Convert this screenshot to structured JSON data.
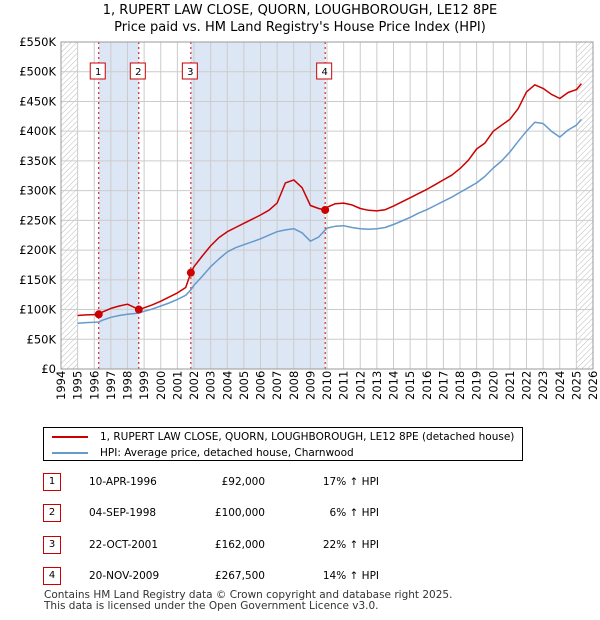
{
  "title": {
    "line1": "1, RUPERT LAW CLOSE, QUORN, LOUGHBOROUGH, LE12 8PE",
    "line2": "Price paid vs. HM Land Registry's House Price Index (HPI)"
  },
  "colors": {
    "price_line": "#cc0000",
    "hpi_line": "#6699cc",
    "shade": "#dde6f5",
    "grid": "#cccccc",
    "marker_border": "#cc0000"
  },
  "legend": {
    "items": [
      {
        "label": "1, RUPERT LAW CLOSE, QUORN, LOUGHBOROUGH, LE12 8PE (detached house)",
        "color": "#cc0000"
      },
      {
        "label": "HPI: Average price, detached house, Charnwood",
        "color": "#6699cc"
      }
    ]
  },
  "sales": [
    {
      "num": "1",
      "date": "10-APR-1996",
      "price": "£92,000",
      "hpi": "17% ↑ HPI"
    },
    {
      "num": "2",
      "date": "04-SEP-1998",
      "price": "£100,000",
      "hpi": "6% ↑ HPI"
    },
    {
      "num": "3",
      "date": "22-OCT-2001",
      "price": "£162,000",
      "hpi": "22% ↑ HPI"
    },
    {
      "num": "4",
      "date": "20-NOV-2009",
      "price": "£267,500",
      "hpi": "14% ↑ HPI"
    }
  ],
  "footer": {
    "line1": "Contains HM Land Registry data © Crown copyright and database right 2025.",
    "line2": "This data is licensed under the Open Government Licence v3.0."
  },
  "chart_data": {
    "type": "line",
    "title": "1, RUPERT LAW CLOSE, QUORN, LOUGHBOROUGH, LE12 8PE — Price paid vs. HM Land Registry's House Price Index (HPI)",
    "xlabel": "",
    "ylabel": "",
    "xlim": [
      1994,
      2026
    ],
    "ylim": [
      0,
      550000
    ],
    "xticks": [
      1994,
      1995,
      1996,
      1997,
      1998,
      1999,
      2000,
      2001,
      2002,
      2003,
      2004,
      2005,
      2006,
      2007,
      2008,
      2009,
      2010,
      2011,
      2012,
      2013,
      2014,
      2015,
      2016,
      2017,
      2018,
      2019,
      2020,
      2021,
      2022,
      2023,
      2024,
      2025,
      2026
    ],
    "yticks": [
      {
        "value": 0,
        "label": "£0"
      },
      {
        "value": 50000,
        "label": "£50K"
      },
      {
        "value": 100000,
        "label": "£100K"
      },
      {
        "value": 150000,
        "label": "£150K"
      },
      {
        "value": 200000,
        "label": "£200K"
      },
      {
        "value": 250000,
        "label": "£250K"
      },
      {
        "value": 300000,
        "label": "£300K"
      },
      {
        "value": 350000,
        "label": "£350K"
      },
      {
        "value": 400000,
        "label": "£400K"
      },
      {
        "value": 450000,
        "label": "£450K"
      },
      {
        "value": 500000,
        "label": "£500K"
      },
      {
        "value": 550000,
        "label": "£550K"
      }
    ],
    "data_start": 1995.0,
    "data_end": 2025.5,
    "shaded_ranges": [
      [
        1996.27,
        1998.68
      ],
      [
        2001.81,
        2009.89
      ]
    ],
    "hatched_ranges": [
      [
        1994.0,
        1995.0
      ],
      [
        2025.0,
        2026.0
      ]
    ],
    "markers": [
      {
        "label": "1",
        "x": 1996.27,
        "y": 92000
      },
      {
        "label": "2",
        "x": 1998.68,
        "y": 100000
      },
      {
        "label": "3",
        "x": 2001.81,
        "y": 162000
      },
      {
        "label": "4",
        "x": 2009.89,
        "y": 267500
      }
    ],
    "series": [
      {
        "name": "1, RUPERT LAW CLOSE, QUORN, LOUGHBOROUGH, LE12 8PE (detached house)",
        "color": "#cc0000",
        "x": [
          1995.0,
          1995.5,
          1996.0,
          1996.27,
          1996.5,
          1997.0,
          1997.5,
          1998.0,
          1998.68,
          1999.0,
          1999.5,
          2000.0,
          2000.5,
          2001.0,
          2001.5,
          2001.81,
          2002.0,
          2002.5,
          2003.0,
          2003.5,
          2004.0,
          2004.5,
          2005.0,
          2005.5,
          2006.0,
          2006.5,
          2007.0,
          2007.5,
          2008.0,
          2008.5,
          2009.0,
          2009.5,
          2009.89,
          2010.0,
          2010.5,
          2011.0,
          2011.5,
          2012.0,
          2012.5,
          2013.0,
          2013.5,
          2014.0,
          2014.5,
          2015.0,
          2015.5,
          2016.0,
          2016.5,
          2017.0,
          2017.5,
          2018.0,
          2018.5,
          2019.0,
          2019.5,
          2020.0,
          2020.5,
          2021.0,
          2021.5,
          2022.0,
          2022.5,
          2023.0,
          2023.5,
          2024.0,
          2024.5,
          2025.0,
          2025.3
        ],
        "values": [
          90000,
          91000,
          91500,
          92000,
          96000,
          102000,
          106000,
          109000,
          100000,
          103000,
          108000,
          114000,
          121000,
          128000,
          137000,
          162000,
          172000,
          190000,
          207000,
          221000,
          231000,
          238000,
          245000,
          252000,
          259000,
          267000,
          279000,
          313000,
          318000,
          305000,
          275000,
          270000,
          267500,
          272000,
          278000,
          279000,
          276000,
          270000,
          267000,
          266000,
          268000,
          274000,
          281000,
          288000,
          295000,
          302000,
          310000,
          318000,
          326000,
          337000,
          351000,
          370000,
          380000,
          400000,
          410000,
          420000,
          438000,
          466000,
          478000,
          472000,
          462000,
          455000,
          465000,
          470000,
          480000
        ]
      },
      {
        "name": "HPI: Average price, detached house, Charnwood",
        "color": "#6699cc",
        "x": [
          1995.0,
          1995.5,
          1996.0,
          1996.27,
          1996.5,
          1997.0,
          1997.5,
          1998.0,
          1998.68,
          1999.0,
          1999.5,
          2000.0,
          2000.5,
          2001.0,
          2001.5,
          2001.81,
          2002.0,
          2002.5,
          2003.0,
          2003.5,
          2004.0,
          2004.5,
          2005.0,
          2005.5,
          2006.0,
          2006.5,
          2007.0,
          2007.5,
          2008.0,
          2008.5,
          2009.0,
          2009.5,
          2009.89,
          2010.0,
          2010.5,
          2011.0,
          2011.5,
          2012.0,
          2012.5,
          2013.0,
          2013.5,
          2014.0,
          2014.5,
          2015.0,
          2015.5,
          2016.0,
          2016.5,
          2017.0,
          2017.5,
          2018.0,
          2018.5,
          2019.0,
          2019.5,
          2020.0,
          2020.5,
          2021.0,
          2021.5,
          2022.0,
          2022.5,
          2023.0,
          2023.5,
          2024.0,
          2024.5,
          2025.0,
          2025.3
        ],
        "values": [
          77000,
          78000,
          78500,
          79000,
          82000,
          87000,
          90000,
          92000,
          94000,
          97000,
          101000,
          106000,
          111000,
          117000,
          124000,
          133000,
          141000,
          156000,
          172000,
          185000,
          197000,
          204000,
          209000,
          214000,
          219000,
          225000,
          231000,
          234000,
          236000,
          229000,
          215000,
          222000,
          234000,
          237000,
          240000,
          241000,
          238000,
          236000,
          235000,
          236000,
          238000,
          243000,
          249000,
          255000,
          262000,
          268000,
          275000,
          282000,
          289000,
          297000,
          305000,
          313000,
          324000,
          338000,
          350000,
          365000,
          383000,
          400000,
          415000,
          413000,
          400000,
          390000,
          402000,
          410000,
          420000
        ]
      }
    ]
  }
}
